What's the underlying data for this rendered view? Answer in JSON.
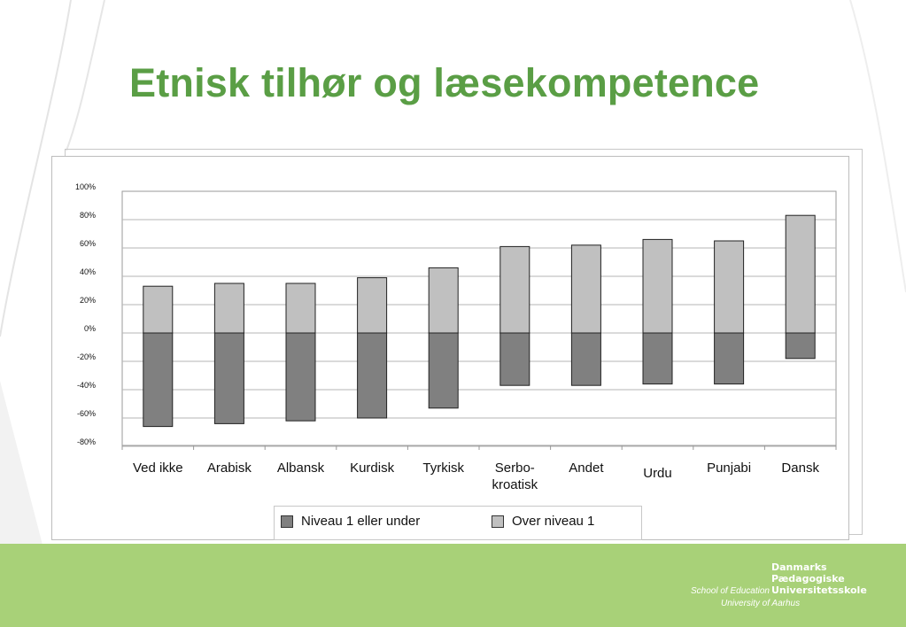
{
  "slide": {
    "title": "Etnisk tilhør og læsekompetence"
  },
  "colors": {
    "title": "#5a9e45",
    "footer_band": "#a8d178",
    "series_below": "#808080",
    "series_above": "#c0c0c0"
  },
  "chart_data": {
    "type": "bar",
    "stacked": true,
    "categories": [
      "Ved ikke",
      "Arabisk",
      "Albansk",
      "Kurdisk",
      "Tyrkisk",
      "Serbo-\nkroatisk",
      "Andet",
      "Urdu",
      "Punjabi",
      "Dansk"
    ],
    "series": [
      {
        "name": "Niveau 1 eller under",
        "color": "#808080",
        "values": [
          -66,
          -64,
          -62,
          -60,
          -53,
          -37,
          -37,
          -36,
          -36,
          -18
        ]
      },
      {
        "name": "Over niveau 1",
        "color": "#c0c0c0",
        "values": [
          33,
          35,
          35,
          39,
          46,
          61,
          62,
          66,
          65,
          83
        ]
      }
    ],
    "y_ticks": [
      "100%",
      "80%",
      "60%",
      "40%",
      "20%",
      "0%",
      "-20%",
      "-40%",
      "-60%",
      "-80%"
    ],
    "ylim": [
      -80,
      100
    ],
    "grid": true,
    "legend_position": "bottom"
  },
  "logo": {
    "name_lines": [
      "Danmarks",
      "Pædagogiske",
      "Universitetsskole"
    ],
    "school": "School of Education",
    "university": "University of Aarhus"
  }
}
